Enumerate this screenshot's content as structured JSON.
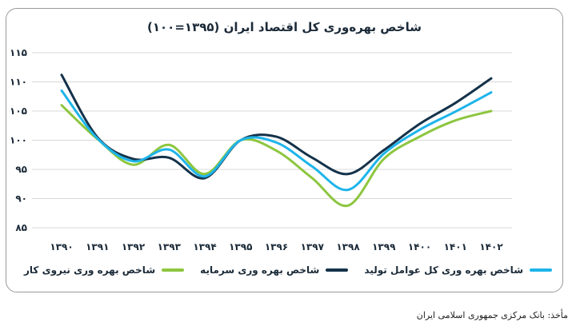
{
  "chart_data": {
    "type": "line",
    "title": "شاخص بهره‌وری کل اقتصاد ایران (۱۳۹۵=۱۰۰)",
    "xlabel": "",
    "ylabel": "",
    "categories": [
      "۱۳۹۰",
      "۱۳۹۱",
      "۱۳۹۲",
      "۱۳۹۳",
      "۱۳۹۴",
      "۱۳۹۵",
      "۱۳۹۶",
      "۱۳۹۷",
      "۱۳۹۸",
      "۱۳۹۹",
      "۱۴۰۰",
      "۱۴۰۱",
      "۱۴۰۲"
    ],
    "x": [
      1390,
      1391,
      1392,
      1393,
      1394,
      1395,
      1396,
      1397,
      1398,
      1399,
      1400,
      1401,
      1402
    ],
    "ylim": [
      85,
      115
    ],
    "yticks": [
      85,
      90,
      95,
      100,
      105,
      110,
      115
    ],
    "ytick_labels": [
      "۸۵",
      "۹۰",
      "۹۵",
      "۱۰۰",
      "۱۰۵",
      "۱۱۰",
      "۱۱۵"
    ],
    "grid": true,
    "legend_position": "bottom",
    "series": [
      {
        "name": "شاخص بهره وری نیروی کار",
        "color": "#8dc63f",
        "values": [
          106.0,
          100.2,
          95.8,
          99.2,
          94.2,
          100.0,
          98.2,
          93.5,
          88.8,
          96.8,
          100.6,
          103.4,
          105.0
        ]
      },
      {
        "name": "شاخص بهره وری سرمایه",
        "color": "#14324a",
        "values": [
          111.2,
          100.5,
          96.8,
          97.0,
          93.5,
          100.0,
          100.6,
          97.0,
          94.2,
          98.3,
          102.8,
          106.4,
          110.6
        ]
      },
      {
        "name": "شاخص بهره وری کل عوامل تولید",
        "color": "#1eb4ea",
        "values": [
          108.5,
          100.3,
          96.4,
          98.4,
          93.8,
          100.0,
          99.6,
          95.5,
          91.5,
          97.7,
          101.8,
          104.9,
          108.2
        ]
      }
    ]
  },
  "source_text": "مأخذ: بانک مرکزی جمهوری اسلامی ایران"
}
